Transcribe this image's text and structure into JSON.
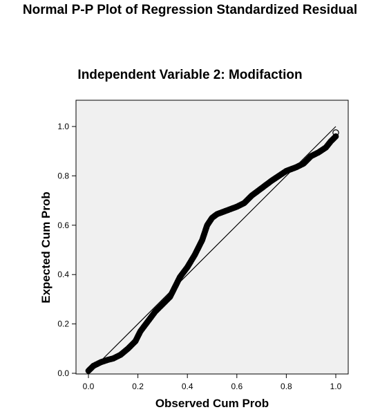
{
  "title": "Normal P-P Plot of Regression Standardized Residual",
  "chart_data": {
    "type": "scatter",
    "subtitle": "Independent Variable 2: Modifaction",
    "xlabel": "Observed Cum Prob",
    "ylabel": "Expected Cum Prob",
    "xlim": [
      0,
      1
    ],
    "ylim": [
      0,
      1
    ],
    "xticks": [
      "0.0",
      "0.2",
      "0.4",
      "0.6",
      "0.8",
      "1.0"
    ],
    "yticks": [
      "0.0",
      "0.2",
      "0.4",
      "0.6",
      "0.8",
      "1.0"
    ],
    "reference_line": {
      "from": [
        0,
        0
      ],
      "to": [
        1,
        1
      ]
    },
    "plot_background": "#f0f0f0",
    "marker_color": "#000000",
    "curve": [
      [
        0.0,
        0.01
      ],
      [
        0.02,
        0.03
      ],
      [
        0.05,
        0.045
      ],
      [
        0.08,
        0.055
      ],
      [
        0.1,
        0.06
      ],
      [
        0.13,
        0.075
      ],
      [
        0.16,
        0.1
      ],
      [
        0.19,
        0.13
      ],
      [
        0.21,
        0.17
      ],
      [
        0.24,
        0.21
      ],
      [
        0.27,
        0.25
      ],
      [
        0.3,
        0.28
      ],
      [
        0.33,
        0.31
      ],
      [
        0.35,
        0.35
      ],
      [
        0.37,
        0.39
      ],
      [
        0.4,
        0.43
      ],
      [
        0.43,
        0.48
      ],
      [
        0.46,
        0.54
      ],
      [
        0.48,
        0.6
      ],
      [
        0.5,
        0.63
      ],
      [
        0.52,
        0.645
      ],
      [
        0.56,
        0.66
      ],
      [
        0.6,
        0.675
      ],
      [
        0.63,
        0.69
      ],
      [
        0.66,
        0.72
      ],
      [
        0.7,
        0.75
      ],
      [
        0.74,
        0.78
      ],
      [
        0.77,
        0.8
      ],
      [
        0.8,
        0.82
      ],
      [
        0.84,
        0.835
      ],
      [
        0.87,
        0.85
      ],
      [
        0.9,
        0.88
      ],
      [
        0.93,
        0.895
      ],
      [
        0.96,
        0.915
      ],
      [
        0.98,
        0.94
      ],
      [
        1.0,
        0.96
      ]
    ],
    "outlier": [
      1.0,
      0.975
    ]
  }
}
